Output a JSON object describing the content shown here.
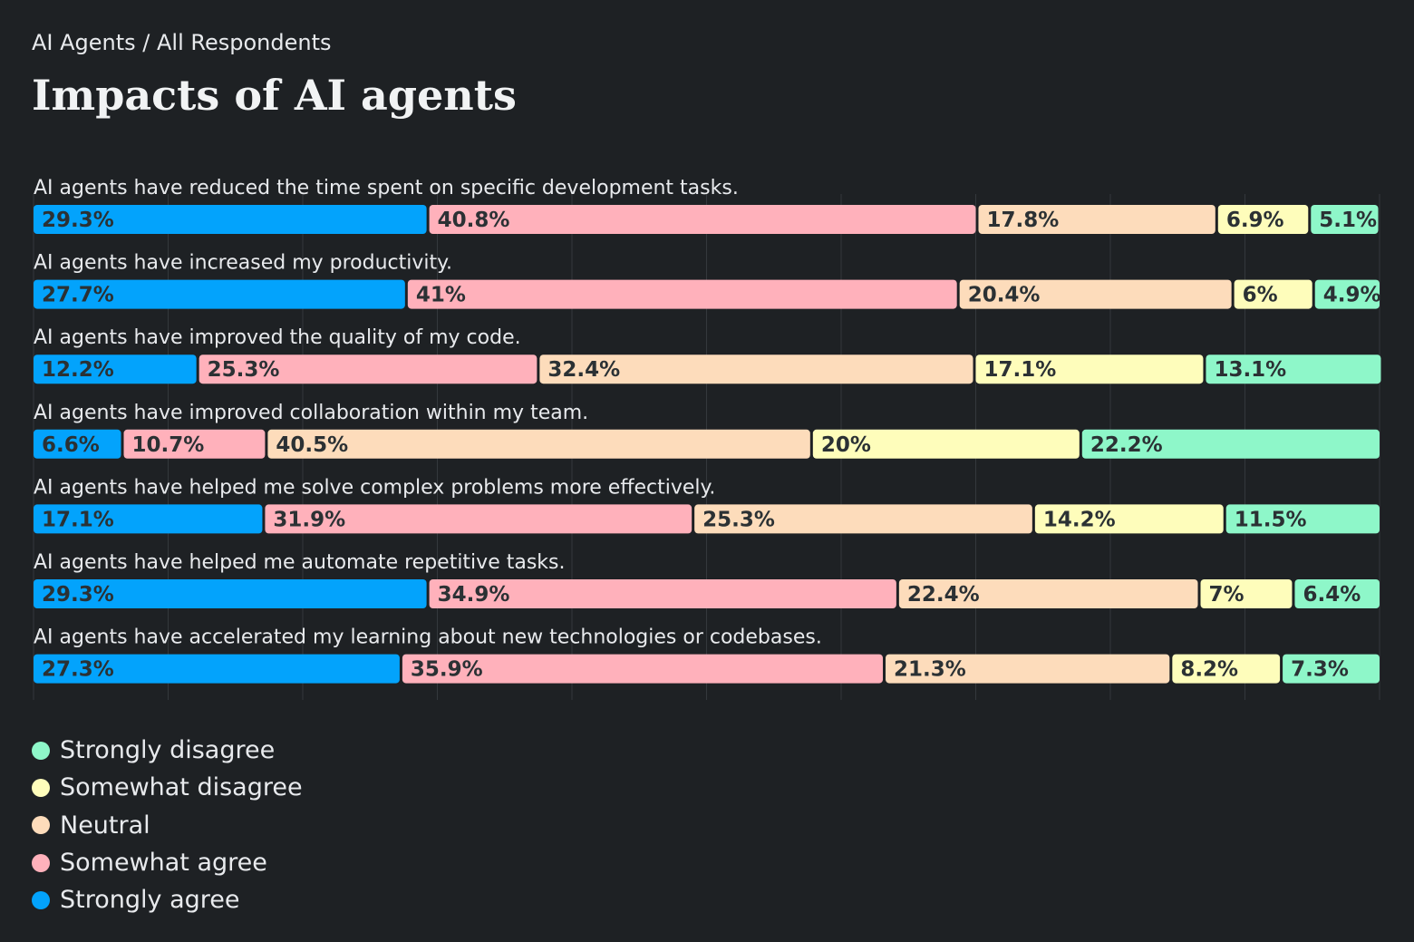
{
  "header": {
    "breadcrumb": "AI Agents / All Respondents",
    "title": "Impacts of AI agents"
  },
  "colors": {
    "background": "#1e2124",
    "grid": "#34383c",
    "row_label": "#e8eaed",
    "value_label": "#2b3134",
    "Strongly agree": "#03a3fc",
    "Somewhat agree": "#ffb1bb",
    "Neutral": "#fddcbb",
    "Somewhat disagree": "#fefdbb",
    "Strongly disagree": "#8ef7c9"
  },
  "legend": {
    "items": [
      "Strongly disagree",
      "Somewhat disagree",
      "Neutral",
      "Somewhat agree",
      "Strongly agree"
    ]
  },
  "chart_data": {
    "type": "bar",
    "orientation": "horizontal",
    "stacked": true,
    "title": "Impacts of AI agents",
    "xlim": [
      0,
      100
    ],
    "grid": true,
    "legend_position": "bottom-left",
    "categories": [
      "AI agents have reduced the time spent on specific development tasks.",
      "AI agents have increased my productivity.",
      "AI agents have improved the quality of my code.",
      "AI agents have improved collaboration within my team.",
      "AI agents have helped me solve complex problems more effectively.",
      "AI agents have helped me automate repetitive tasks.",
      "AI agents have accelerated my learning about new technologies or codebases."
    ],
    "series": [
      {
        "name": "Strongly agree",
        "values": [
          29.3,
          27.7,
          12.2,
          6.6,
          17.1,
          29.3,
          27.3
        ],
        "labels": [
          "29.3%",
          "27.7%",
          "12.2%",
          "6.6%",
          "17.1%",
          "29.3%",
          "27.3%"
        ]
      },
      {
        "name": "Somewhat agree",
        "values": [
          40.8,
          41,
          25.3,
          10.7,
          31.9,
          34.9,
          35.9
        ],
        "labels": [
          "40.8%",
          "41%",
          "25.3%",
          "10.7%",
          "31.9%",
          "34.9%",
          "35.9%"
        ]
      },
      {
        "name": "Neutral",
        "values": [
          17.8,
          20.4,
          32.4,
          40.5,
          25.3,
          22.4,
          21.3
        ],
        "labels": [
          "17.8%",
          "20.4%",
          "32.4%",
          "40.5%",
          "25.3%",
          "22.4%",
          "21.3%"
        ]
      },
      {
        "name": "Somewhat disagree",
        "values": [
          6.9,
          6,
          17.1,
          20,
          14.2,
          7,
          8.2
        ],
        "labels": [
          "6.9%",
          "6%",
          "17.1%",
          "20%",
          "14.2%",
          "7%",
          "8.2%"
        ]
      },
      {
        "name": "Strongly disagree",
        "values": [
          5.1,
          4.9,
          13.1,
          22.2,
          11.5,
          6.4,
          7.3
        ],
        "labels": [
          "5.1%",
          "4.9%",
          "13.1%",
          "22.2%",
          "11.5%",
          "6.4%",
          "7.3%"
        ]
      }
    ]
  }
}
